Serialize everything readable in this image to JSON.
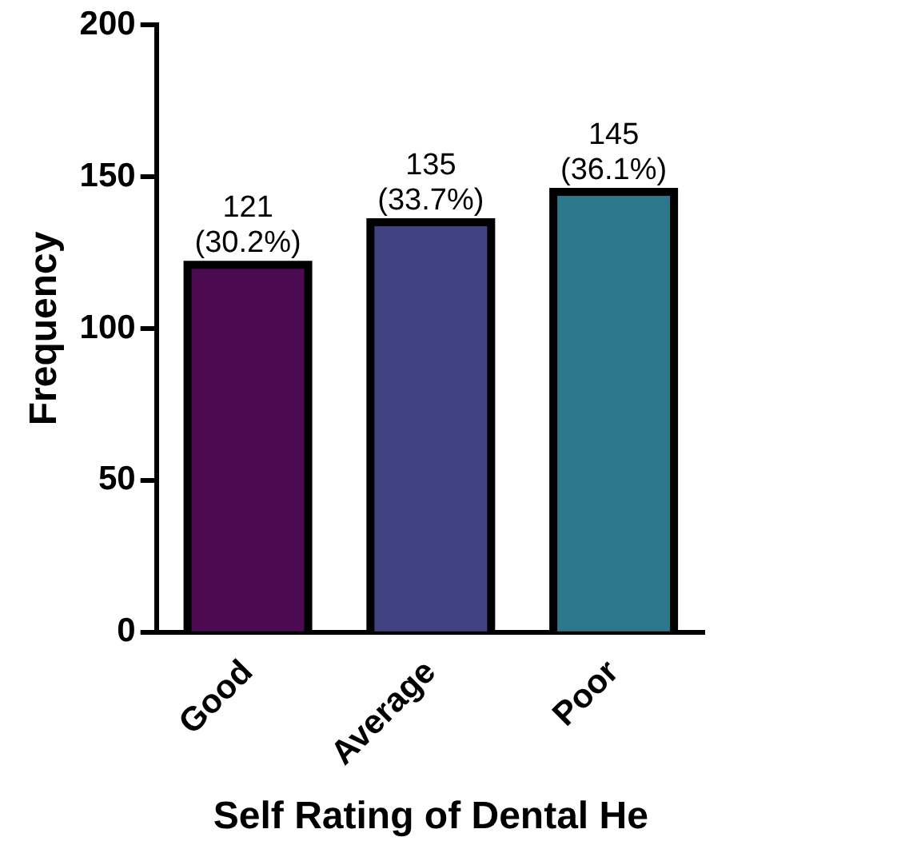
{
  "chart_data": {
    "type": "bar",
    "xlabel": "Self Rating of Dental He",
    "ylabel": "Frequency",
    "categories": [
      "Good",
      "Average",
      "Poor"
    ],
    "values": [
      121,
      135,
      145
    ],
    "colors": [
      "#4b0a52",
      "#404282",
      "#2c788a"
    ],
    "value_labels": [
      "121 (30.2%)",
      "135 (33.7%)",
      "145 (36.1%)"
    ],
    "ylim": [
      0,
      200
    ],
    "yticks": [
      0,
      50,
      100,
      150,
      200
    ],
    "grid": false,
    "legend": false
  }
}
